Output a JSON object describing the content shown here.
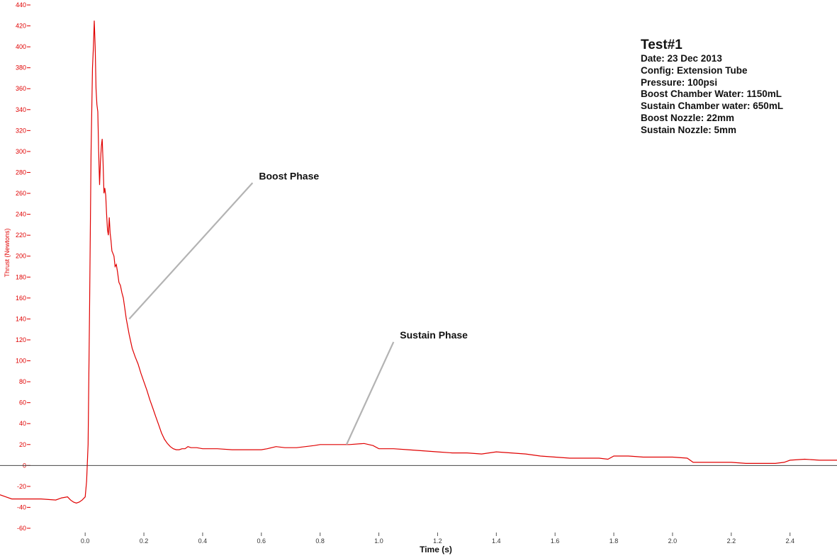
{
  "chart_data": {
    "type": "line",
    "xlabel": "Time (s)",
    "ylabel": "Thrust (Newtons)",
    "xlim": [
      -0.29,
      2.56
    ],
    "ylim": [
      -60,
      440
    ],
    "y_ticks": [
      -60,
      -40,
      -20,
      0,
      20,
      40,
      60,
      80,
      100,
      120,
      140,
      160,
      180,
      200,
      220,
      240,
      260,
      280,
      300,
      320,
      340,
      360,
      380,
      400,
      420,
      440
    ],
    "x_ticks": [
      0.0,
      0.2,
      0.4,
      0.6,
      0.8,
      1.0,
      1.2,
      1.4,
      1.6,
      1.8,
      2.0,
      2.2,
      2.4
    ],
    "x_tick_labels": [
      "0.0",
      "0.2",
      "0.4",
      "0.6",
      "0.8",
      "1.0",
      "1.2",
      "1.4",
      "1.6",
      "1.8",
      "2.0",
      "2.2",
      "2.4"
    ],
    "zero_line": true,
    "grid": false,
    "series": [
      {
        "color": "#e00000",
        "points": [
          [
            -0.29,
            -28
          ],
          [
            -0.27,
            -30
          ],
          [
            -0.25,
            -32
          ],
          [
            -0.2,
            -32
          ],
          [
            -0.15,
            -32
          ],
          [
            -0.1,
            -33
          ],
          [
            -0.08,
            -31
          ],
          [
            -0.06,
            -30
          ],
          [
            -0.05,
            -33
          ],
          [
            -0.04,
            -35
          ],
          [
            -0.03,
            -36
          ],
          [
            -0.02,
            -35
          ],
          [
            -0.01,
            -33
          ],
          [
            0.0,
            -30
          ],
          [
            0.005,
            -15
          ],
          [
            0.01,
            20
          ],
          [
            0.015,
            150
          ],
          [
            0.02,
            300
          ],
          [
            0.025,
            380
          ],
          [
            0.028,
            400
          ],
          [
            0.031,
            425
          ],
          [
            0.034,
            400
          ],
          [
            0.037,
            360
          ],
          [
            0.04,
            345
          ],
          [
            0.043,
            338
          ],
          [
            0.046,
            300
          ],
          [
            0.049,
            268
          ],
          [
            0.052,
            290
          ],
          [
            0.055,
            305
          ],
          [
            0.058,
            312
          ],
          [
            0.061,
            290
          ],
          [
            0.064,
            260
          ],
          [
            0.067,
            265
          ],
          [
            0.07,
            258
          ],
          [
            0.073,
            240
          ],
          [
            0.076,
            225
          ],
          [
            0.079,
            220
          ],
          [
            0.082,
            237
          ],
          [
            0.085,
            222
          ],
          [
            0.088,
            215
          ],
          [
            0.091,
            205
          ],
          [
            0.094,
            203
          ],
          [
            0.098,
            200
          ],
          [
            0.102,
            190
          ],
          [
            0.106,
            192
          ],
          [
            0.11,
            185
          ],
          [
            0.115,
            175
          ],
          [
            0.12,
            172
          ],
          [
            0.125,
            165
          ],
          [
            0.13,
            160
          ],
          [
            0.135,
            150
          ],
          [
            0.14,
            140
          ],
          [
            0.15,
            125
          ],
          [
            0.16,
            112
          ],
          [
            0.17,
            104
          ],
          [
            0.18,
            97
          ],
          [
            0.19,
            88
          ],
          [
            0.2,
            80
          ],
          [
            0.21,
            72
          ],
          [
            0.22,
            63
          ],
          [
            0.23,
            55
          ],
          [
            0.24,
            47
          ],
          [
            0.25,
            39
          ],
          [
            0.26,
            31
          ],
          [
            0.27,
            25
          ],
          [
            0.28,
            21
          ],
          [
            0.29,
            18
          ],
          [
            0.3,
            16
          ],
          [
            0.31,
            15
          ],
          [
            0.32,
            15
          ],
          [
            0.33,
            16
          ],
          [
            0.34,
            16
          ],
          [
            0.35,
            18
          ],
          [
            0.36,
            17
          ],
          [
            0.38,
            17
          ],
          [
            0.4,
            16
          ],
          [
            0.45,
            16
          ],
          [
            0.5,
            15
          ],
          [
            0.55,
            15
          ],
          [
            0.6,
            15
          ],
          [
            0.62,
            16
          ],
          [
            0.65,
            18
          ],
          [
            0.68,
            17
          ],
          [
            0.72,
            17
          ],
          [
            0.75,
            18
          ],
          [
            0.78,
            19
          ],
          [
            0.8,
            20
          ],
          [
            0.85,
            20
          ],
          [
            0.9,
            20
          ],
          [
            0.95,
            21
          ],
          [
            0.98,
            19
          ],
          [
            1.0,
            16
          ],
          [
            1.05,
            16
          ],
          [
            1.1,
            15
          ],
          [
            1.15,
            14
          ],
          [
            1.2,
            13
          ],
          [
            1.25,
            12
          ],
          [
            1.3,
            12
          ],
          [
            1.35,
            11
          ],
          [
            1.4,
            13
          ],
          [
            1.45,
            12
          ],
          [
            1.5,
            11
          ],
          [
            1.55,
            9
          ],
          [
            1.6,
            8
          ],
          [
            1.65,
            7
          ],
          [
            1.7,
            7
          ],
          [
            1.75,
            7
          ],
          [
            1.78,
            6
          ],
          [
            1.8,
            9
          ],
          [
            1.85,
            9
          ],
          [
            1.9,
            8
          ],
          [
            1.95,
            8
          ],
          [
            2.0,
            8
          ],
          [
            2.05,
            7
          ],
          [
            2.07,
            3
          ],
          [
            2.1,
            3
          ],
          [
            2.15,
            3
          ],
          [
            2.2,
            3
          ],
          [
            2.25,
            2
          ],
          [
            2.3,
            2
          ],
          [
            2.35,
            2
          ],
          [
            2.38,
            3
          ],
          [
            2.4,
            5
          ],
          [
            2.45,
            6
          ],
          [
            2.5,
            5
          ],
          [
            2.56,
            5
          ]
        ]
      }
    ],
    "annotations": [
      {
        "text": "Boost Phase",
        "point": [
          0.15,
          140
        ],
        "label_anchor": [
          0.57,
          270
        ]
      },
      {
        "text": "Sustain Phase",
        "point": [
          0.89,
          20
        ],
        "label_anchor": [
          1.05,
          118
        ]
      }
    ],
    "info_box": {
      "title": "Test#1",
      "lines": [
        "Date: 23 Dec 2013",
        "Config: Extension Tube",
        "Pressure: 100psi",
        "Boost Chamber Water: 1150mL",
        "Sustain Chamber water: 650mL",
        "Boost Nozzle: 22mm",
        "Sustain Nozzle: 5mm"
      ]
    },
    "colors": {
      "series": "#e00000",
      "axis_labels_y": "#e00000",
      "zero_line": "#444444",
      "leader_line": "#b3b3b3"
    }
  }
}
